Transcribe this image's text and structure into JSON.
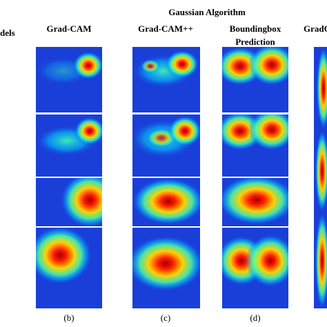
{
  "header": {
    "title": "Gaussian Algorithm",
    "row_header": "dels"
  },
  "columns": [
    {
      "title_lines": [
        "Grad-CAM"
      ],
      "label": "(b)"
    },
    {
      "title_lines": [
        "Grad-CAM++"
      ],
      "label": "(c)"
    },
    {
      "title_lines": [
        "Boundingbox",
        "Prediction"
      ],
      "label": "(d)"
    },
    {
      "title_lines": [
        "GradC"
      ]
    }
  ]
}
